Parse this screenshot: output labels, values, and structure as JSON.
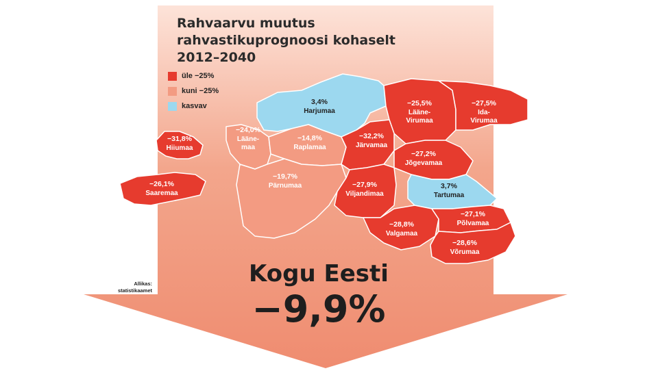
{
  "title": {
    "line1": "Rahvaarvu muutus",
    "line2": "rahvastikuprognoosi kohaselt",
    "line3": "2012–2040"
  },
  "colors": {
    "decline_over_25": "#e63b2e",
    "decline_up_to_25": "#f39b82",
    "growth": "#9cd8ef",
    "arrow_top": "#fbd6c9",
    "arrow_bottom": "#f08f73"
  },
  "legend": [
    {
      "label": "üle −25%",
      "category": "decline_over_25"
    },
    {
      "label": "kuni −25%",
      "category": "decline_up_to_25"
    },
    {
      "label": "kasvav",
      "category": "growth"
    }
  ],
  "counties": [
    {
      "name": "Harjumaa",
      "value": "3,4%",
      "category": "growth"
    },
    {
      "name": "Lääne-\nVirumaa",
      "value": "−25,5%",
      "category": "decline_over_25"
    },
    {
      "name": "Ida-\nVirumaa",
      "value": "−27,5%",
      "category": "decline_over_25"
    },
    {
      "name": "Hiiumaa",
      "value": "−31,8%",
      "category": "decline_over_25"
    },
    {
      "name": "Lääne-\nmaa",
      "value": "−24,0%",
      "category": "decline_up_to_25"
    },
    {
      "name": "Raplamaa",
      "value": "−14,8%",
      "category": "decline_up_to_25"
    },
    {
      "name": "Järvamaa",
      "value": "−32,2%",
      "category": "decline_over_25"
    },
    {
      "name": "Jõgevamaa",
      "value": "−27,2%",
      "category": "decline_over_25"
    },
    {
      "name": "Saaremaa",
      "value": "−26,1%",
      "category": "decline_over_25"
    },
    {
      "name": "Pärnumaa",
      "value": "−19,7%",
      "category": "decline_up_to_25"
    },
    {
      "name": "Viljandimaa",
      "value": "−27,9%",
      "category": "decline_over_25"
    },
    {
      "name": "Tartumaa",
      "value": "3,7%",
      "category": "growth"
    },
    {
      "name": "Valgamaa",
      "value": "−28,8%",
      "category": "decline_over_25"
    },
    {
      "name": "Põlvamaa",
      "value": "−27,1%",
      "category": "decline_over_25"
    },
    {
      "name": "Võrumaa",
      "value": "−28,6%",
      "category": "decline_over_25"
    }
  ],
  "source": {
    "line1": "Allikas:",
    "line2": "statistikaamet"
  },
  "total": {
    "label": "Kogu Eesti",
    "value": "−9,9%"
  }
}
